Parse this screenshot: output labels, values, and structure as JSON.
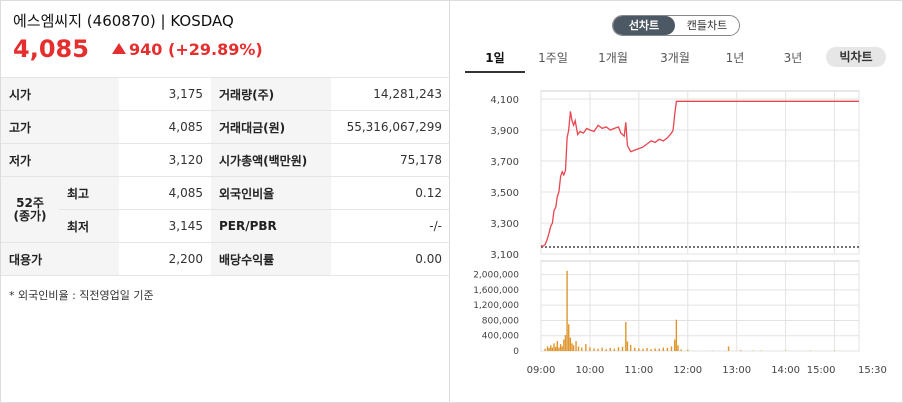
{
  "header": {
    "name": "에스엠씨지",
    "code": "(460870)",
    "separator": "|",
    "market": "KOSDAQ",
    "price": "4,085",
    "change": "940",
    "change_rate": "(+29.89%)",
    "up_color": "#e52e2e"
  },
  "table": {
    "open_label": "시가",
    "open": "3,175",
    "volume_label": "거래량(주)",
    "volume": "14,281,243",
    "high_label": "고가",
    "high": "4,085",
    "amount_label": "거래대금(원)",
    "amount": "55,316,067,299",
    "low_label": "저가",
    "low": "3,120",
    "mcap_label": "시가총액(백만원)",
    "mcap": "75,178",
    "w52_label_1": "52주",
    "w52_label_2": "(종가)",
    "w52_high_label": "최고",
    "w52_high": "4,085",
    "foreign_label": "외국인비율",
    "foreign": "0.12",
    "w52_low_label": "최저",
    "w52_low": "3,145",
    "per_label": "PER/PBR",
    "per": "-/-",
    "sub_label": "대용가",
    "sub": "2,200",
    "div_label": "배당수익률",
    "div": "0.00"
  },
  "note": "* 외국인비율 : 직전영업일 기준",
  "toggle": {
    "line": "선차트",
    "candle": "캔들차트"
  },
  "tabs": [
    "1일",
    "1주일",
    "1개월",
    "3개월",
    "1년",
    "3년"
  ],
  "big_chart": "빅차트",
  "chart_data": [
    {
      "type": "line",
      "y_ticks": [
        "4,100",
        "3,900",
        "3,700",
        "3,500",
        "3,300",
        "3,100"
      ],
      "ylim": [
        3100,
        4100
      ],
      "xlim": [
        "09:00",
        "15:30"
      ],
      "prev_close": 3145,
      "line_color": "#e8454f",
      "series": [
        {
          "values": [
            [
              "09:00",
              3155
            ],
            [
              "09:02",
              3150
            ],
            [
              "09:05",
              3160
            ],
            [
              "09:08",
              3200
            ],
            [
              "09:10",
              3240
            ],
            [
              "09:12",
              3280
            ],
            [
              "09:14",
              3300
            ],
            [
              "09:16",
              3380
            ],
            [
              "09:18",
              3400
            ],
            [
              "09:20",
              3470
            ],
            [
              "09:22",
              3500
            ],
            [
              "09:24",
              3600
            ],
            [
              "09:26",
              3630
            ],
            [
              "09:28",
              3610
            ],
            [
              "09:30",
              3640
            ],
            [
              "09:32",
              3850
            ],
            [
              "09:34",
              3900
            ],
            [
              "09:36",
              4020
            ],
            [
              "09:38",
              3960
            ],
            [
              "09:40",
              3930
            ],
            [
              "09:42",
              3960
            ],
            [
              "09:45",
              3870
            ],
            [
              "09:48",
              3890
            ],
            [
              "09:52",
              3880
            ],
            [
              "09:56",
              3910
            ],
            [
              "10:00",
              3900
            ],
            [
              "10:05",
              3890
            ],
            [
              "10:10",
              3930
            ],
            [
              "10:15",
              3910
            ],
            [
              "10:20",
              3920
            ],
            [
              "10:25",
              3900
            ],
            [
              "10:30",
              3910
            ],
            [
              "10:35",
              3920
            ],
            [
              "10:38",
              3880
            ],
            [
              "10:42",
              3860
            ],
            [
              "10:44",
              3950
            ],
            [
              "10:46",
              3800
            ],
            [
              "10:50",
              3760
            ],
            [
              "10:55",
              3770
            ],
            [
              "11:00",
              3780
            ],
            [
              "11:05",
              3790
            ],
            [
              "11:10",
              3810
            ],
            [
              "11:15",
              3830
            ],
            [
              "11:20",
              3820
            ],
            [
              "11:25",
              3840
            ],
            [
              "11:30",
              3830
            ],
            [
              "11:35",
              3850
            ],
            [
              "11:40",
              3880
            ],
            [
              "11:42",
              3900
            ],
            [
              "11:44",
              4000
            ],
            [
              "11:46",
              4085
            ],
            [
              "12:00",
              4085
            ],
            [
              "13:00",
              4085
            ],
            [
              "14:00",
              4085
            ],
            [
              "15:00",
              4085
            ],
            [
              "15:30",
              4085
            ]
          ]
        }
      ]
    },
    {
      "type": "bar",
      "y_ticks": [
        "2,000,000",
        "1,600,000",
        "1,200,000",
        "800,000",
        "400,000",
        "0"
      ],
      "ylim": [
        0,
        2200000
      ],
      "x_ticks": [
        "09:00",
        "10:00",
        "11:00",
        "12:00",
        "13:00",
        "14:00",
        "15:00",
        "15:30"
      ],
      "bar_color": "#e0962c",
      "series": [
        {
          "values": [
            [
              "09:05",
              60000
            ],
            [
              "09:08",
              120000
            ],
            [
              "09:10",
              80000
            ],
            [
              "09:12",
              150000
            ],
            [
              "09:14",
              90000
            ],
            [
              "09:16",
              200000
            ],
            [
              "09:18",
              110000
            ],
            [
              "09:20",
              260000
            ],
            [
              "09:22",
              90000
            ],
            [
              "09:24",
              180000
            ],
            [
              "09:26",
              120000
            ],
            [
              "09:28",
              300000
            ],
            [
              "09:30",
              420000
            ],
            [
              "09:32",
              2100000
            ],
            [
              "09:34",
              700000
            ],
            [
              "09:36",
              350000
            ],
            [
              "09:38",
              200000
            ],
            [
              "09:40",
              150000
            ],
            [
              "09:43",
              260000
            ],
            [
              "09:46",
              120000
            ],
            [
              "09:50",
              90000
            ],
            [
              "09:55",
              180000
            ],
            [
              "10:00",
              100000
            ],
            [
              "10:05",
              70000
            ],
            [
              "10:10",
              60000
            ],
            [
              "10:15",
              90000
            ],
            [
              "10:20",
              50000
            ],
            [
              "10:25",
              80000
            ],
            [
              "10:30",
              60000
            ],
            [
              "10:35",
              100000
            ],
            [
              "10:40",
              110000
            ],
            [
              "10:44",
              760000
            ],
            [
              "10:46",
              250000
            ],
            [
              "10:50",
              160000
            ],
            [
              "10:55",
              90000
            ],
            [
              "11:00",
              70000
            ],
            [
              "11:05",
              60000
            ],
            [
              "11:10",
              80000
            ],
            [
              "11:15",
              50000
            ],
            [
              "11:20",
              70000
            ],
            [
              "11:25",
              60000
            ],
            [
              "11:30",
              90000
            ],
            [
              "11:35",
              80000
            ],
            [
              "11:40",
              120000
            ],
            [
              "11:44",
              300000
            ],
            [
              "11:46",
              820000
            ],
            [
              "11:48",
              150000
            ],
            [
              "11:52",
              40000
            ],
            [
              "12:00",
              30000
            ],
            [
              "12:30",
              10000
            ],
            [
              "12:50",
              120000
            ],
            [
              "13:05",
              20000
            ],
            [
              "13:20",
              10000
            ],
            [
              "13:30",
              10000
            ],
            [
              "14:00",
              10000
            ],
            [
              "14:30",
              10000
            ],
            [
              "15:00",
              10000
            ]
          ]
        }
      ]
    }
  ]
}
